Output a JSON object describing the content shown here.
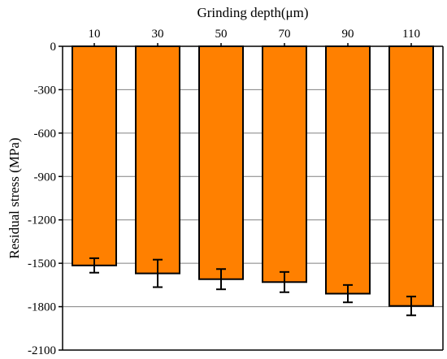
{
  "chart_data": {
    "type": "bar",
    "title": "",
    "xlabel": "Grinding depth(μm)",
    "ylabel": "Residual stress (MPa)",
    "categories": [
      "10",
      "30",
      "50",
      "70",
      "90",
      "110"
    ],
    "values": [
      -1515,
      -1570,
      -1610,
      -1630,
      -1710,
      -1795
    ],
    "error": [
      50,
      95,
      70,
      70,
      60,
      65
    ],
    "ylim": [
      -2100,
      0
    ],
    "yticks": [
      0,
      -300,
      -600,
      -900,
      -1200,
      -1500,
      -1800,
      -2100
    ],
    "ytick_labels": [
      "0",
      "-300",
      "-600",
      "-900",
      "-1200",
      "-1500",
      "-1800",
      "-2100"
    ],
    "x_axis_position": "top",
    "grid": "horizontal",
    "legend": "none",
    "colors": {
      "bar_fill": "#ff8000",
      "bar_edge": "#000000",
      "grid": "#808080",
      "axis": "#000000"
    }
  }
}
